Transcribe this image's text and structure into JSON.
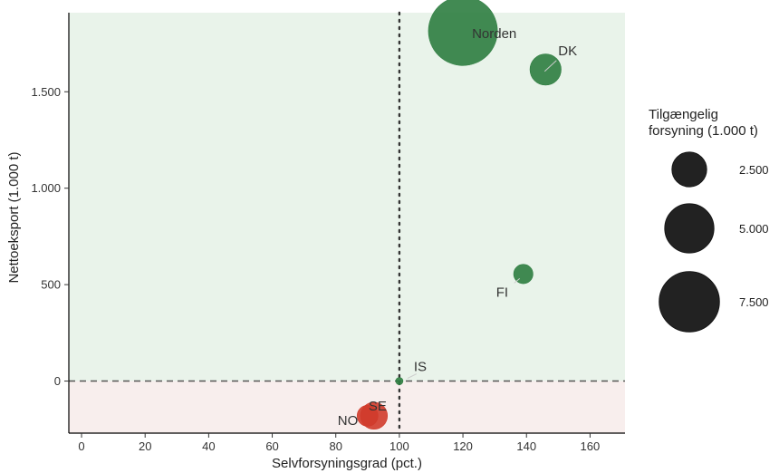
{
  "chart_data": {
    "type": "scatter",
    "xlabel": "Selvforsyningsgrad (pct.)",
    "ylabel": "Nettoeksport (1.000 t)",
    "xlim": [
      -4,
      171
    ],
    "ylim": [
      -270,
      1910
    ],
    "x_ticks": [
      0,
      20,
      40,
      60,
      80,
      100,
      120,
      140,
      160
    ],
    "x_tick_labels": [
      "0",
      "20",
      "40",
      "60",
      "80",
      "100",
      "120",
      "140",
      "160"
    ],
    "y_ticks": [
      0,
      500,
      1000,
      1500
    ],
    "y_tick_labels": [
      "0",
      "500",
      "1.000",
      "1.500"
    ],
    "reference_lines": {
      "x": 100,
      "y": 0
    },
    "background_regions": {
      "positive_color": "#e9f3ea",
      "negative_color": "#f8eeed"
    },
    "colors": {
      "positive": "#2e7d40",
      "negative": "#d03b2b"
    },
    "points": [
      {
        "label": "Norden",
        "x": 120,
        "y": 1815,
        "size": 9800,
        "sign": "positive"
      },
      {
        "label": "DK",
        "x": 146,
        "y": 1615,
        "size": 2000,
        "sign": "positive"
      },
      {
        "label": "FI",
        "x": 139,
        "y": 555,
        "size": 770,
        "sign": "positive"
      },
      {
        "label": "IS",
        "x": 100,
        "y": 0,
        "size": 110,
        "sign": "positive"
      },
      {
        "label": "SE",
        "x": 92,
        "y": -180,
        "size": 1500,
        "sign": "negative"
      },
      {
        "label": "NO",
        "x": 90,
        "y": -180,
        "size": 900,
        "sign": "negative"
      }
    ],
    "legend": {
      "title_lines": [
        "Tilgængelig",
        "forsyning (1.000 t)"
      ],
      "entries": [
        {
          "label": "2.500",
          "size": 2500
        },
        {
          "label": "5.000",
          "size": 5000
        },
        {
          "label": "7.500",
          "size": 7500
        }
      ],
      "color": "#222222"
    }
  }
}
